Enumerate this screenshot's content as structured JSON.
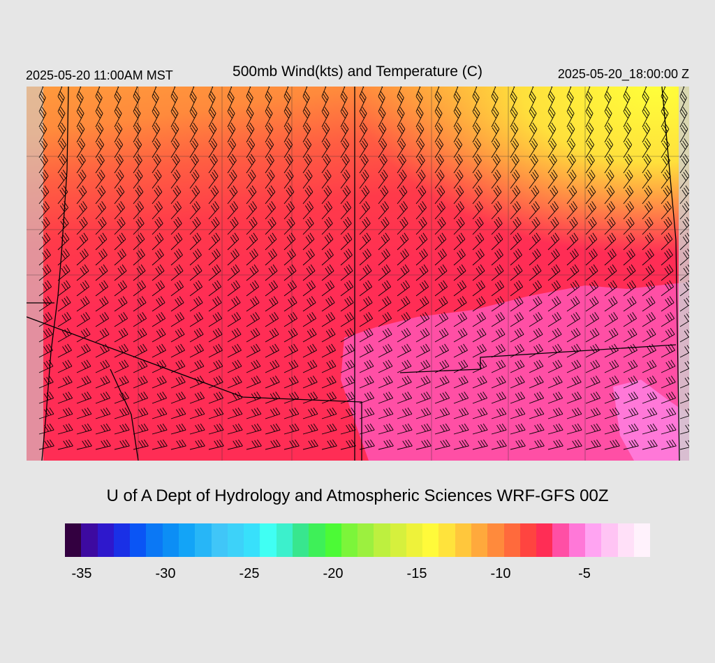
{
  "header": {
    "left_timestamp": "2025-05-20 11:00AM MST",
    "title": "500mb Wind(kts) and Temperature (C)",
    "right_timestamp": "2025-05-20_18:00:00 Z"
  },
  "credit": "U of A Dept of Hydrology and Atmospheric Sciences WRF-GFS 00Z",
  "colorbar": {
    "colors": [
      "#330040",
      "#3d0aa0",
      "#2e18cc",
      "#1a30e6",
      "#0a55f5",
      "#0b78f5",
      "#0c8ef5",
      "#13a4f7",
      "#27b6f7",
      "#40c6f8",
      "#3dd2f9",
      "#38e0fb",
      "#40fff3",
      "#3cf0cc",
      "#38e68e",
      "#3ef058",
      "#4cfa36",
      "#7cf53a",
      "#9cf03f",
      "#bdf03f",
      "#d6f03d",
      "#eef23a",
      "#fffa3a",
      "#ffe33c",
      "#ffc73c",
      "#ffa93c",
      "#ff8a3c",
      "#ff6a3c",
      "#ff4440",
      "#ff2d55",
      "#ff4fa5",
      "#ff78d8",
      "#ffa4f2",
      "#ffc4f4",
      "#ffe0f8",
      "#fff2fc"
    ],
    "ticks": [
      "-35",
      "-30",
      "-25",
      "-20",
      "-15",
      "-10",
      "-5"
    ],
    "tick_values": [
      -35,
      -30,
      -25,
      -20,
      -15,
      -10,
      -5
    ]
  },
  "map": {
    "temperature_bands": [
      {
        "from_color": "#ffe83a",
        "value": -13
      },
      {
        "from_color": "#ffa63c",
        "value": -11
      },
      {
        "from_color": "#ff8a3c",
        "value": -10
      },
      {
        "from_color": "#ff5a44",
        "value": -9
      },
      {
        "from_color": "#ff3a4c",
        "value": -8
      },
      {
        "from_color": "#ff2d55",
        "value": -7
      },
      {
        "from_color": "#ff4fa5",
        "value": -6
      }
    ]
  }
}
